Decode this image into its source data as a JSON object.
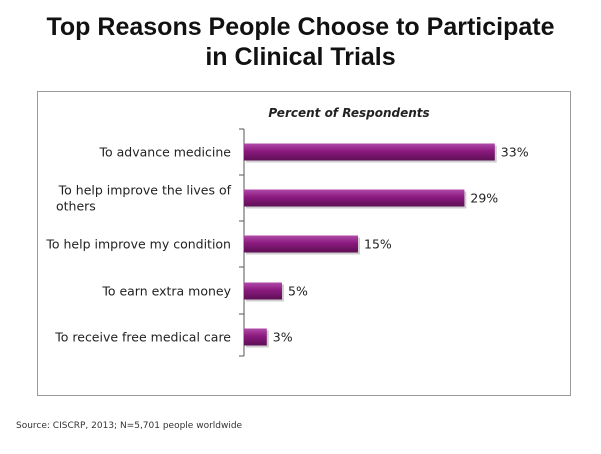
{
  "title_line1": "Top Reasons People Choose to Participate",
  "title_line2": "in Clinical Trials",
  "source": "Source: CISCRP, 2013; N=5,701 people worldwide",
  "chart_data": {
    "type": "bar",
    "orientation": "horizontal",
    "series_label": "Percent of Respondents",
    "categories": [
      [
        "To advance medicine"
      ],
      [
        "To help improve the lives of",
        "others"
      ],
      [
        "To help improve my condition"
      ],
      [
        "To earn extra money"
      ],
      [
        "To receive free medical care"
      ]
    ],
    "values": [
      33,
      29,
      15,
      5,
      3
    ],
    "value_labels": [
      "33%",
      "29%",
      "15%",
      "5%",
      "3%"
    ],
    "unit": "%",
    "bar_color": "#8B1A7E",
    "grid": false,
    "legend": "none"
  }
}
